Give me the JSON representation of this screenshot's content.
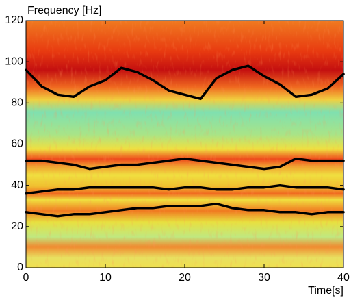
{
  "chart_data": {
    "type": "line",
    "y_label": "Frequency [Hz]",
    "x_label": "Time[s]",
    "x": [
      0,
      2,
      4,
      6,
      8,
      10,
      12,
      14,
      16,
      18,
      20,
      22,
      24,
      26,
      28,
      30,
      32,
      34,
      36,
      38,
      40
    ],
    "series": [
      {
        "color": "#000000",
        "values": [
          96,
          88,
          84,
          83,
          88,
          91,
          97,
          95,
          91,
          86,
          84,
          82,
          92,
          96,
          98,
          93,
          89,
          83,
          84,
          87,
          94
        ]
      },
      {
        "color": "#000000",
        "values": [
          52,
          52,
          51,
          50,
          48,
          49,
          50,
          50,
          51,
          52,
          53,
          52,
          51,
          50,
          49,
          48,
          49,
          53,
          52,
          52,
          52
        ]
      },
      {
        "color": "#000000",
        "values": [
          36,
          37,
          38,
          38,
          39,
          39,
          39,
          39,
          39,
          38,
          39,
          39,
          38,
          38,
          39,
          39,
          40,
          39,
          39,
          39,
          38
        ]
      },
      {
        "color": "#000000",
        "values": [
          27,
          26,
          25,
          26,
          26,
          27,
          28,
          29,
          29,
          30,
          30,
          30,
          31,
          29,
          28,
          28,
          27,
          27,
          26,
          27,
          27
        ]
      }
    ],
    "xlim": [
      0,
      40
    ],
    "xticks": [
      0,
      10,
      20,
      30,
      40
    ],
    "ylim": [
      0,
      120
    ],
    "yticks": [
      0,
      20,
      40,
      60,
      80,
      100,
      120
    ]
  }
}
